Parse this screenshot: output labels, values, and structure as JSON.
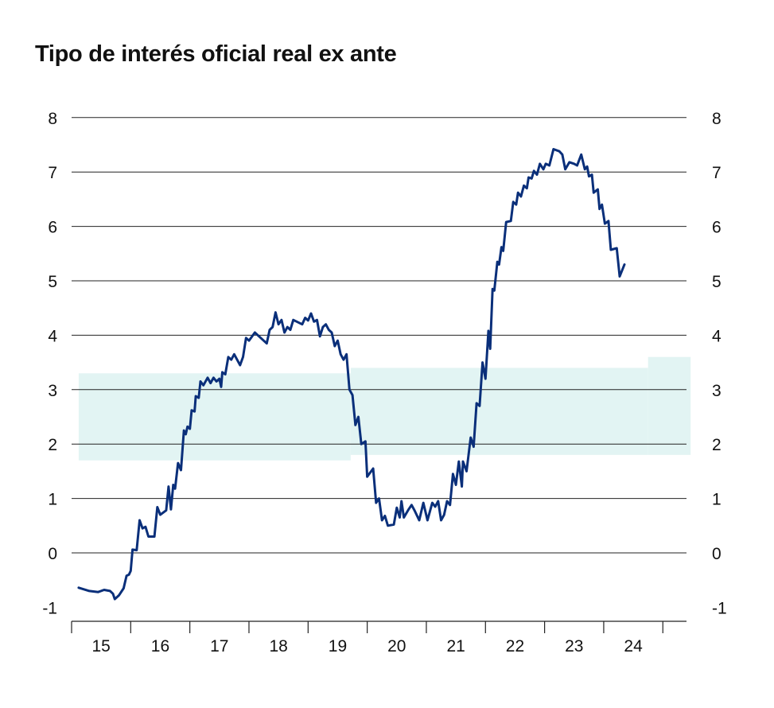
{
  "chart_data": {
    "type": "line",
    "title": "Tipo de interés oficial real ex ante",
    "xlabel": "",
    "ylabel": "",
    "ylim": [
      -1,
      8
    ],
    "yticks": [
      -1,
      0,
      1,
      2,
      3,
      4,
      5,
      6,
      7,
      8
    ],
    "ytick_labels": [
      "-1",
      "0",
      "1",
      "2",
      "3",
      "4",
      "5",
      "6",
      "7",
      "8"
    ],
    "xlim": [
      2014.5,
      2024.9
    ],
    "xticks": [
      2015,
      2016,
      2017,
      2018,
      2019,
      2020,
      2021,
      2022,
      2023,
      2024
    ],
    "xtick_labels": [
      "15",
      "16",
      "17",
      "18",
      "19",
      "20",
      "21",
      "22",
      "23",
      "24"
    ],
    "grid": "horizontal",
    "colors": {
      "line": "#0a2f7a",
      "band": "#e2f4f3",
      "grid": "#222222"
    },
    "band": [
      {
        "x0": 2014.62,
        "x1": 2019.22,
        "low": 1.7,
        "high": 3.3
      },
      {
        "x0": 2019.22,
        "x1": 2024.25,
        "low": 1.8,
        "high": 3.4
      },
      {
        "x0": 2024.25,
        "x1": 2024.97,
        "low": 1.8,
        "high": 3.6
      }
    ],
    "series": [
      {
        "values": [
          [
            2014.62,
            -0.64
          ],
          [
            2014.8,
            -0.7
          ],
          [
            2014.95,
            -0.72
          ],
          [
            2015.05,
            -0.68
          ],
          [
            2015.15,
            -0.7
          ],
          [
            2015.2,
            -0.75
          ],
          [
            2015.23,
            -0.85
          ],
          [
            2015.3,
            -0.78
          ],
          [
            2015.38,
            -0.65
          ],
          [
            2015.43,
            -0.42
          ],
          [
            2015.47,
            -0.4
          ],
          [
            2015.5,
            -0.33
          ],
          [
            2015.53,
            0.06
          ],
          [
            2015.6,
            0.05
          ],
          [
            2015.65,
            0.6
          ],
          [
            2015.7,
            0.45
          ],
          [
            2015.75,
            0.48
          ],
          [
            2015.8,
            0.3
          ],
          [
            2015.9,
            0.3
          ],
          [
            2015.95,
            0.84
          ],
          [
            2016.0,
            0.7
          ],
          [
            2016.1,
            0.78
          ],
          [
            2016.14,
            1.22
          ],
          [
            2016.18,
            0.8
          ],
          [
            2016.22,
            1.25
          ],
          [
            2016.25,
            1.18
          ],
          [
            2016.3,
            1.65
          ],
          [
            2016.35,
            1.52
          ],
          [
            2016.4,
            2.25
          ],
          [
            2016.43,
            2.18
          ],
          [
            2016.46,
            2.32
          ],
          [
            2016.5,
            2.28
          ],
          [
            2016.53,
            2.62
          ],
          [
            2016.58,
            2.6
          ],
          [
            2016.6,
            2.88
          ],
          [
            2016.65,
            2.85
          ],
          [
            2016.68,
            3.15
          ],
          [
            2016.73,
            3.08
          ],
          [
            2016.8,
            3.22
          ],
          [
            2016.85,
            3.12
          ],
          [
            2016.9,
            3.22
          ],
          [
            2016.95,
            3.15
          ],
          [
            2017.0,
            3.2
          ],
          [
            2017.03,
            3.05
          ],
          [
            2017.05,
            3.32
          ],
          [
            2017.1,
            3.28
          ],
          [
            2017.15,
            3.6
          ],
          [
            2017.2,
            3.55
          ],
          [
            2017.25,
            3.65
          ],
          [
            2017.3,
            3.55
          ],
          [
            2017.35,
            3.45
          ],
          [
            2017.4,
            3.6
          ],
          [
            2017.45,
            3.95
          ],
          [
            2017.5,
            3.9
          ],
          [
            2017.6,
            4.05
          ],
          [
            2017.7,
            3.95
          ],
          [
            2017.8,
            3.85
          ],
          [
            2017.85,
            4.1
          ],
          [
            2017.9,
            4.15
          ],
          [
            2017.95,
            4.42
          ],
          [
            2018.0,
            4.2
          ],
          [
            2018.05,
            4.28
          ],
          [
            2018.1,
            4.05
          ],
          [
            2018.15,
            4.15
          ],
          [
            2018.2,
            4.1
          ],
          [
            2018.25,
            4.28
          ],
          [
            2018.4,
            4.2
          ],
          [
            2018.45,
            4.32
          ],
          [
            2018.5,
            4.27
          ],
          [
            2018.55,
            4.4
          ],
          [
            2018.6,
            4.25
          ],
          [
            2018.65,
            4.28
          ],
          [
            2018.7,
            3.98
          ],
          [
            2018.75,
            4.15
          ],
          [
            2018.8,
            4.2
          ],
          [
            2018.85,
            4.1
          ],
          [
            2018.9,
            4.05
          ],
          [
            2018.95,
            3.8
          ],
          [
            2019.0,
            3.9
          ],
          [
            2019.05,
            3.65
          ],
          [
            2019.1,
            3.55
          ],
          [
            2019.15,
            3.65
          ],
          [
            2019.2,
            3.0
          ],
          [
            2019.25,
            2.9
          ],
          [
            2019.3,
            2.35
          ],
          [
            2019.35,
            2.5
          ],
          [
            2019.4,
            2.0
          ],
          [
            2019.47,
            2.05
          ],
          [
            2019.5,
            1.4
          ],
          [
            2019.6,
            1.55
          ],
          [
            2019.65,
            0.92
          ],
          [
            2019.7,
            1.0
          ],
          [
            2019.75,
            0.6
          ],
          [
            2019.8,
            0.68
          ],
          [
            2019.85,
            0.5
          ],
          [
            2019.95,
            0.52
          ],
          [
            2020.0,
            0.83
          ],
          [
            2020.05,
            0.65
          ],
          [
            2020.08,
            0.95
          ],
          [
            2020.12,
            0.65
          ],
          [
            2020.2,
            0.8
          ],
          [
            2020.25,
            0.88
          ],
          [
            2020.3,
            0.78
          ],
          [
            2020.38,
            0.6
          ],
          [
            2020.45,
            0.92
          ],
          [
            2020.52,
            0.6
          ],
          [
            2020.6,
            0.92
          ],
          [
            2020.65,
            0.85
          ],
          [
            2020.7,
            0.95
          ],
          [
            2020.75,
            0.6
          ],
          [
            2020.8,
            0.7
          ],
          [
            2020.85,
            0.95
          ],
          [
            2020.9,
            0.88
          ],
          [
            2020.95,
            1.45
          ],
          [
            2021.0,
            1.25
          ],
          [
            2021.05,
            1.68
          ],
          [
            2021.1,
            1.22
          ],
          [
            2021.12,
            1.68
          ],
          [
            2021.18,
            1.5
          ],
          [
            2021.25,
            2.12
          ],
          [
            2021.3,
            1.95
          ],
          [
            2021.35,
            2.75
          ],
          [
            2021.4,
            2.7
          ],
          [
            2021.45,
            3.5
          ],
          [
            2021.5,
            3.2
          ],
          [
            2021.55,
            4.08
          ],
          [
            2021.58,
            3.75
          ],
          [
            2021.62,
            4.85
          ],
          [
            2021.65,
            4.82
          ],
          [
            2021.7,
            5.35
          ],
          [
            2021.73,
            5.3
          ],
          [
            2021.77,
            5.62
          ],
          [
            2021.8,
            5.55
          ],
          [
            2021.85,
            6.08
          ],
          [
            2021.93,
            6.1
          ],
          [
            2021.97,
            6.45
          ],
          [
            2022.02,
            6.4
          ],
          [
            2022.05,
            6.62
          ],
          [
            2022.1,
            6.55
          ],
          [
            2022.15,
            6.75
          ],
          [
            2022.2,
            6.7
          ],
          [
            2022.23,
            6.9
          ],
          [
            2022.28,
            6.88
          ],
          [
            2022.32,
            7.02
          ],
          [
            2022.37,
            6.95
          ],
          [
            2022.42,
            7.15
          ],
          [
            2022.48,
            7.05
          ],
          [
            2022.52,
            7.15
          ],
          [
            2022.58,
            7.12
          ],
          [
            2022.65,
            7.42
          ],
          [
            2022.75,
            7.38
          ],
          [
            2022.8,
            7.32
          ],
          [
            2022.85,
            7.05
          ],
          [
            2022.92,
            7.18
          ],
          [
            2023.0,
            7.15
          ],
          [
            2023.05,
            7.12
          ],
          [
            2023.12,
            7.32
          ],
          [
            2023.18,
            7.05
          ],
          [
            2023.22,
            7.1
          ],
          [
            2023.25,
            6.92
          ],
          [
            2023.3,
            6.95
          ],
          [
            2023.33,
            6.62
          ],
          [
            2023.4,
            6.68
          ],
          [
            2023.43,
            6.32
          ],
          [
            2023.47,
            6.4
          ],
          [
            2023.52,
            6.05
          ],
          [
            2023.58,
            6.1
          ],
          [
            2023.62,
            5.57
          ],
          [
            2023.72,
            5.6
          ],
          [
            2023.77,
            5.08
          ],
          [
            2023.85,
            5.3
          ]
        ]
      }
    ]
  }
}
